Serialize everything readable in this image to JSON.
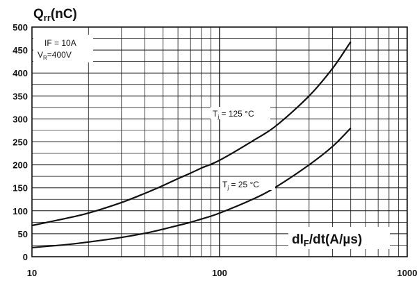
{
  "chart_data": {
    "type": "line",
    "ylabel": {
      "main": "Q",
      "sub": "rr",
      "rest": "(nC)"
    },
    "xlabel": {
      "main": "dI",
      "sub": "F",
      "rest": "/dt(A/µs)"
    },
    "x_scale": "log",
    "xlim": [
      10,
      1000
    ],
    "ylim": [
      0,
      500
    ],
    "x_ticks": [
      10,
      100,
      1000
    ],
    "x_tick_labels": [
      "10",
      "100",
      "1000"
    ],
    "y_ticks": [
      0,
      50,
      100,
      150,
      200,
      250,
      300,
      350,
      400,
      450,
      500
    ],
    "y_tick_labels": [
      "0",
      "50",
      "100",
      "150",
      "200",
      "250",
      "300",
      "350",
      "400",
      "450",
      "500"
    ],
    "grid": true,
    "conditions": {
      "line1": "IF = 10A",
      "line2": {
        "main": "V",
        "sub": "R",
        "rest": "=400V"
      }
    },
    "series": [
      {
        "name": {
          "main": "T",
          "sub": "j",
          "rest": " = 125 °C"
        },
        "x": [
          10,
          15,
          20,
          30,
          40,
          50,
          60,
          70,
          80,
          100,
          150,
          200,
          300,
          400,
          500
        ],
        "y": [
          68,
          83,
          95,
          118,
          138,
          155,
          170,
          182,
          193,
          210,
          252,
          285,
          350,
          410,
          468
        ]
      },
      {
        "name": {
          "main": "T",
          "sub": "j",
          "rest": " = 25 °C"
        },
        "x": [
          10,
          15,
          20,
          30,
          40,
          50,
          60,
          70,
          80,
          100,
          150,
          200,
          300,
          400,
          500
        ],
        "y": [
          20,
          26,
          32,
          42,
          51,
          60,
          68,
          75,
          82,
          95,
          125,
          152,
          200,
          240,
          280
        ]
      }
    ]
  }
}
